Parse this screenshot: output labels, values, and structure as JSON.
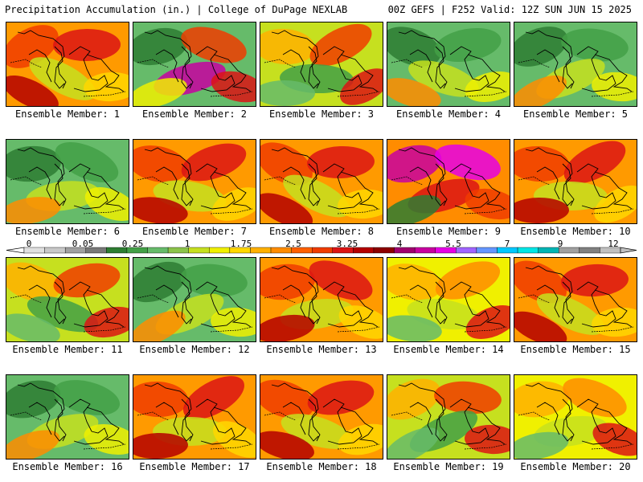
{
  "header": {
    "left": "Precipitation Accumulation (in.) | College of DuPage NEXLAB",
    "right": "00Z GEFS | F252 Valid: 12Z SUN JUN 15 2025"
  },
  "members": [
    {
      "label": "Ensemble Member: 1",
      "tone": "red"
    },
    {
      "label": "Ensemble Member: 2",
      "tone": "green-red"
    },
    {
      "label": "Ensemble Member: 3",
      "tone": "mixed"
    },
    {
      "label": "Ensemble Member: 4",
      "tone": "green"
    },
    {
      "label": "Ensemble Member: 5",
      "tone": "green"
    },
    {
      "label": "Ensemble Member: 6",
      "tone": "green"
    },
    {
      "label": "Ensemble Member: 7",
      "tone": "red"
    },
    {
      "label": "Ensemble Member: 8",
      "tone": "red"
    },
    {
      "label": "Ensemble Member: 9",
      "tone": "magenta"
    },
    {
      "label": "Ensemble Member: 10",
      "tone": "red"
    },
    {
      "label": "Ensemble Member: 11",
      "tone": "mixed"
    },
    {
      "label": "Ensemble Member: 12",
      "tone": "green"
    },
    {
      "label": "Ensemble Member: 13",
      "tone": "red"
    },
    {
      "label": "Ensemble Member: 14",
      "tone": "yellow"
    },
    {
      "label": "Ensemble Member: 15",
      "tone": "red"
    },
    {
      "label": "Ensemble Member: 16",
      "tone": "green"
    },
    {
      "label": "Ensemble Member: 17",
      "tone": "red"
    },
    {
      "label": "Ensemble Member: 18",
      "tone": "red"
    },
    {
      "label": "Ensemble Member: 19",
      "tone": "mixed"
    },
    {
      "label": "Ensemble Member: 20",
      "tone": "yellow"
    }
  ],
  "colorbar": {
    "labels": [
      "0",
      "0.05",
      "0.25",
      "1",
      "1.75",
      "2.5",
      "3.25",
      "4",
      "5.5",
      "7",
      "9",
      "12"
    ],
    "colors": [
      "#e0e0e0",
      "#c8c8c8",
      "#a0a0a0",
      "#787878",
      "#2e7d32",
      "#43a047",
      "#66bb6a",
      "#8bc34a",
      "#c6e01f",
      "#f0f000",
      "#ffd700",
      "#ffb000",
      "#ff8c00",
      "#ff6000",
      "#f03c00",
      "#dc1414",
      "#b40000",
      "#8c0000",
      "#a0006e",
      "#c800a0",
      "#e600e6",
      "#a064ff",
      "#6496ff",
      "#00c8ff",
      "#00e6e6",
      "#00b4b4",
      "#a0a0a0",
      "#808080",
      "#c0c0c0"
    ]
  }
}
